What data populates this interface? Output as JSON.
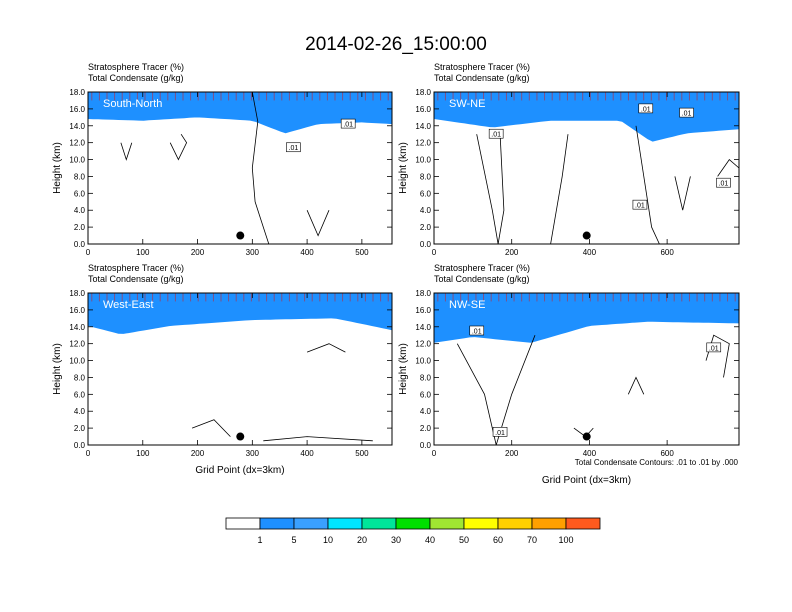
{
  "title": "2014-02-26_15:00:00",
  "palette": [
    "#ffffff",
    "#1e90ff",
    "#3aa0ff",
    "#00e5ff",
    "#00e59a",
    "#00e000",
    "#a0e632",
    "#ffff00",
    "#ffd000",
    "#ffa000",
    "#ff5a1e",
    "#ff0000"
  ],
  "colorbar": {
    "labels": [
      "1",
      "5",
      "10",
      "20",
      "30",
      "40",
      "50",
      "60",
      "70",
      "100"
    ]
  },
  "footer_note": "Total Condensate Contours: .01 to .01 by .000",
  "chart_data": [
    {
      "type": "heatmap",
      "panel": "South-North",
      "subtitle_line1": "Stratosphere Tracer   (%)",
      "subtitle_line2": "Total Condensate   (g/kg)",
      "ylabel": "Height (km)",
      "xlabel": "",
      "ylim": [
        0,
        18
      ],
      "xlim": [
        0,
        555
      ],
      "xticks": [
        "0",
        "100",
        "200",
        "300",
        "400",
        "500"
      ],
      "xtick_values": [
        0,
        100,
        200,
        300,
        400,
        500
      ],
      "yticks": [
        "0.0",
        "2.0",
        "4.0",
        "6.0",
        "8.0",
        "10.0",
        "12.0",
        "14.0",
        "16.0",
        "18.0"
      ],
      "contour_labels": [
        ".01",
        ".01"
      ],
      "contour_label_pos": [
        [
          375,
          11.4
        ],
        [
          475,
          14.2
        ]
      ],
      "marker": [
        278,
        1.0
      ],
      "tracer_base_profile": [
        [
          0,
          15.2
        ],
        [
          100,
          15.0
        ],
        [
          200,
          15.4
        ],
        [
          300,
          15.0
        ],
        [
          360,
          13.5
        ],
        [
          420,
          14.6
        ],
        [
          500,
          14.8
        ],
        [
          555,
          14.6
        ]
      ],
      "contours": [
        [
          [
            300,
            18
          ],
          [
            310,
            14.5
          ],
          [
            300,
            9
          ],
          [
            305,
            5
          ],
          [
            320,
            2
          ],
          [
            330,
            0
          ]
        ],
        [
          [
            150,
            12
          ],
          [
            165,
            10
          ],
          [
            180,
            12
          ],
          [
            170,
            13
          ]
        ],
        [
          [
            60,
            12
          ],
          [
            70,
            10
          ],
          [
            80,
            12
          ]
        ],
        [
          [
            400,
            4
          ],
          [
            420,
            1
          ],
          [
            440,
            4
          ]
        ]
      ]
    },
    {
      "type": "heatmap",
      "panel": "SW-NE",
      "subtitle_line1": "Stratosphere Tracer   (%)",
      "subtitle_line2": "Total Condensate   (g/kg)",
      "ylabel": "Height (km)",
      "xlabel": "",
      "ylim": [
        0,
        18
      ],
      "xlim": [
        0,
        785
      ],
      "xticks": [
        "0",
        "200",
        "400",
        "600"
      ],
      "xtick_values": [
        0,
        200,
        400,
        600
      ],
      "yticks": [
        "0.0",
        "2.0",
        "4.0",
        "6.0",
        "8.0",
        "10.0",
        "12.0",
        "14.0",
        "16.0",
        "18.0"
      ],
      "contour_labels": [
        ".01",
        ".01",
        ".01",
        ".01",
        ".01"
      ],
      "contour_label_pos": [
        [
          160,
          13.0
        ],
        [
          530,
          4.6
        ],
        [
          545,
          16.0
        ],
        [
          650,
          15.5
        ],
        [
          745,
          7.2
        ]
      ],
      "marker": [
        393,
        1.0
      ],
      "tracer_base_profile": [
        [
          0,
          15.2
        ],
        [
          150,
          14.2
        ],
        [
          300,
          15.0
        ],
        [
          480,
          15.0
        ],
        [
          560,
          12.5
        ],
        [
          650,
          13.5
        ],
        [
          785,
          14.0
        ]
      ],
      "contours": [
        [
          [
            110,
            13
          ],
          [
            150,
            4
          ],
          [
            165,
            0
          ],
          [
            180,
            4
          ],
          [
            170,
            13
          ]
        ],
        [
          [
            300,
            0
          ],
          [
            330,
            8
          ],
          [
            345,
            13
          ]
        ],
        [
          [
            520,
            14
          ],
          [
            540,
            8
          ],
          [
            560,
            2
          ],
          [
            580,
            0
          ]
        ],
        [
          [
            620,
            8
          ],
          [
            640,
            4
          ],
          [
            660,
            8
          ]
        ],
        [
          [
            730,
            8
          ],
          [
            760,
            10
          ],
          [
            785,
            9
          ]
        ]
      ]
    },
    {
      "type": "heatmap",
      "panel": "West-East",
      "subtitle_line1": "Stratosphere Tracer   (%)",
      "subtitle_line2": "Total Condensate   (g/kg)",
      "ylabel": "Height (km)",
      "xlabel": "Grid Point (dx=3km)",
      "ylim": [
        0,
        18
      ],
      "xlim": [
        0,
        555
      ],
      "xticks": [
        "0",
        "100",
        "200",
        "300",
        "400",
        "500"
      ],
      "xtick_values": [
        0,
        100,
        200,
        300,
        400,
        500
      ],
      "yticks": [
        "0.0",
        "2.0",
        "4.0",
        "6.0",
        "8.0",
        "10.0",
        "12.0",
        "14.0",
        "16.0",
        "18.0"
      ],
      "contour_labels": [],
      "contour_label_pos": [],
      "marker": [
        278,
        1.0
      ],
      "tracer_base_profile": [
        [
          0,
          14.5
        ],
        [
          60,
          13.5
        ],
        [
          150,
          14.5
        ],
        [
          300,
          15.2
        ],
        [
          450,
          15.4
        ],
        [
          555,
          14.0
        ]
      ],
      "contours": [
        [
          [
            400,
            11
          ],
          [
            440,
            12
          ],
          [
            470,
            11
          ]
        ],
        [
          [
            190,
            2
          ],
          [
            230,
            3
          ],
          [
            260,
            1
          ]
        ],
        [
          [
            320,
            0.5
          ],
          [
            400,
            1
          ],
          [
            520,
            0.5
          ]
        ]
      ]
    },
    {
      "type": "heatmap",
      "panel": "NW-SE",
      "subtitle_line1": "Stratosphere Tracer   (%)",
      "subtitle_line2": "Total Condensate   (g/kg)",
      "ylabel": "Height (km)",
      "xlabel": "Grid Point (dx=3km)",
      "ylim": [
        0,
        18
      ],
      "xlim": [
        0,
        785
      ],
      "xticks": [
        "0",
        "200",
        "400",
        "600"
      ],
      "xtick_values": [
        0,
        200,
        400,
        600
      ],
      "yticks": [
        "0.0",
        "2.0",
        "4.0",
        "6.0",
        "8.0",
        "10.0",
        "12.0",
        "14.0",
        "16.0",
        "18.0"
      ],
      "contour_labels": [
        ".01",
        ".01",
        ".01"
      ],
      "contour_label_pos": [
        [
          110,
          13.5
        ],
        [
          170,
          1.5
        ],
        [
          720,
          11.5
        ]
      ],
      "marker": [
        393,
        1.0
      ],
      "tracer_base_profile": [
        [
          0,
          12.5
        ],
        [
          100,
          13.2
        ],
        [
          250,
          12.5
        ],
        [
          400,
          14.5
        ],
        [
          550,
          15.0
        ],
        [
          785,
          14.8
        ]
      ],
      "contours": [
        [
          [
            60,
            12
          ],
          [
            130,
            6
          ],
          [
            160,
            0
          ],
          [
            200,
            6
          ],
          [
            260,
            13
          ]
        ],
        [
          [
            360,
            2
          ],
          [
            390,
            1
          ],
          [
            410,
            2
          ]
        ],
        [
          [
            700,
            10
          ],
          [
            720,
            13
          ],
          [
            760,
            12
          ],
          [
            745,
            8
          ]
        ],
        [
          [
            500,
            6
          ],
          [
            520,
            8
          ],
          [
            540,
            6
          ]
        ]
      ]
    }
  ]
}
